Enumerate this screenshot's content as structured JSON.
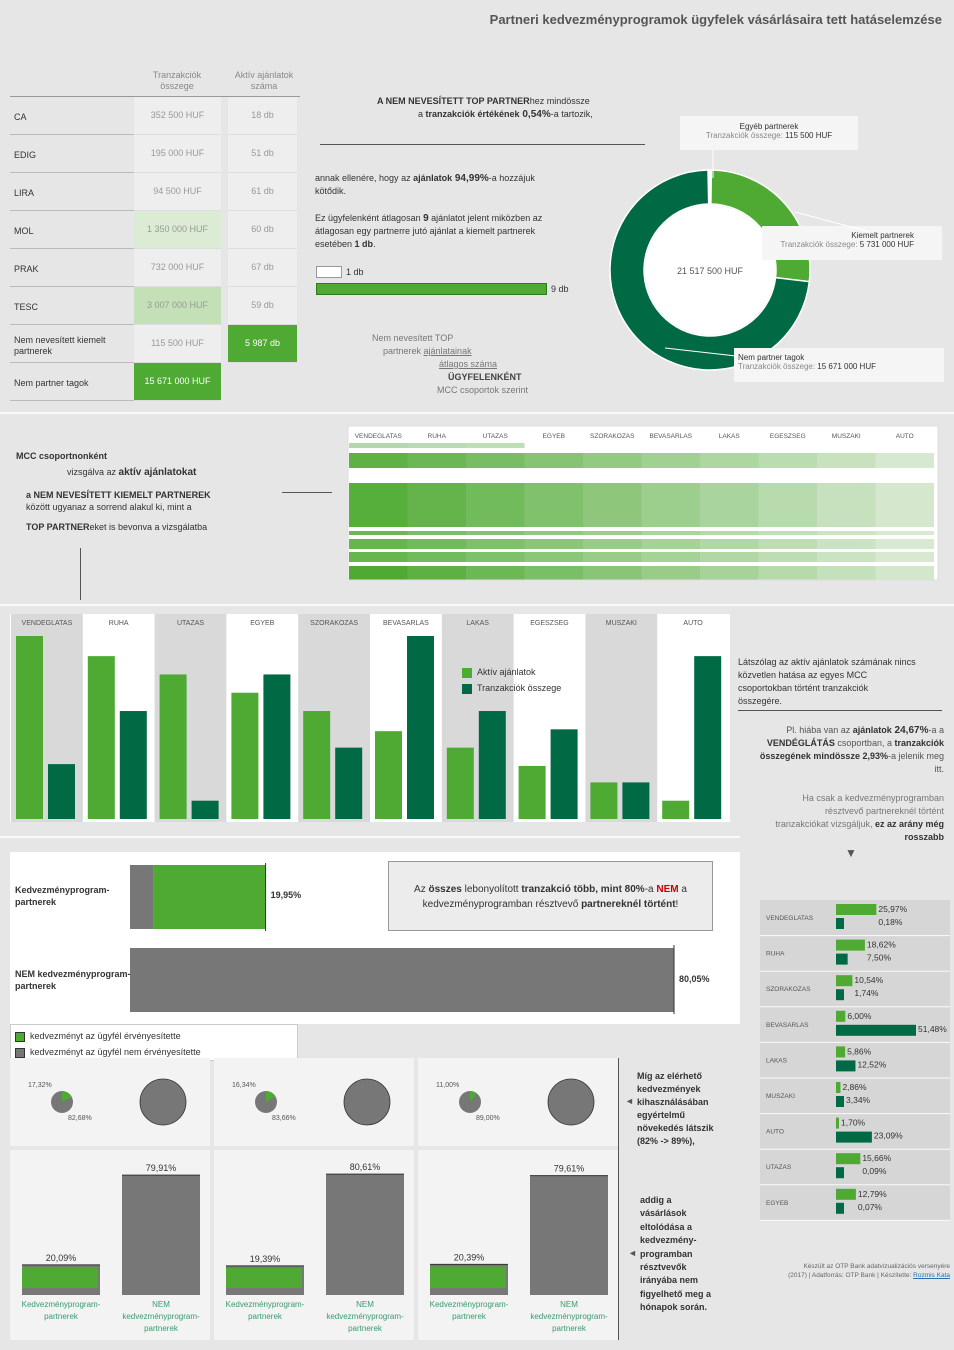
{
  "title": "Partneri kedvezményprogramok ügyfelek vásárlásaira tett hatáselemzése",
  "colors": {
    "light_green": "#4eaa32",
    "dark_green": "#006a45",
    "gray": "#777777",
    "highlight": "#cc0000"
  },
  "table": {
    "col1_header_1": "Tranzakciók",
    "col1_header_2": "összege",
    "col2_header_1": "Aktív ajánlatok",
    "col2_header_2": "száma",
    "rows": [
      {
        "label": "CA",
        "amount": "352 500 HUF",
        "count": "18 db"
      },
      {
        "label": "EDIG",
        "amount": "195 000 HUF",
        "count": "51 db"
      },
      {
        "label": "LIRA",
        "amount": "94 500 HUF",
        "count": "61 db"
      },
      {
        "label": "MOL",
        "amount": "1 350 000 HUF",
        "count": "60 db"
      },
      {
        "label": "PRAK",
        "amount": "732 000 HUF",
        "count": "67 db"
      },
      {
        "label": "TESC",
        "amount": "3 007 000 HUF",
        "count": "59 db"
      },
      {
        "label_1": "Nem nevesített kiemelt",
        "label_2": "partnerek",
        "amount": "115 500 HUF",
        "count": "5 987 db"
      },
      {
        "label": "Nem partner tagok",
        "amount": "15 671 000 HUF",
        "count": ""
      }
    ]
  },
  "intro": {
    "line1_a": "A NEM NEVESÍTETT TOP PARTNER",
    "line1_b": "hez mindössze",
    "line2_a": "a ",
    "line2_b": "tranzakciók értékének",
    "line2_c": " 0,54%",
    "line2_d": "-a tartozik,",
    "p2_a": "annak ellenére, hogy az ",
    "p2_b": "ajánlatok",
    "p2_c": " 94,99%",
    "p2_d": "-a hozzájuk",
    "p2_e": "kötődik.",
    "p3_a": "Ez ügyfelenként átlagosan ",
    "p3_b": "9",
    "p3_c": " ajánlatot jelent miközben az",
    "p3_d": "átlagosan egy partnerre jutó ajánlat a kiemelt partnerek",
    "p3_e": "esetében ",
    "p3_f": "1 db",
    "p3_g": ".",
    "bar1_label": "1 db",
    "bar2_label": "9 db",
    "cap1": "Nem nevesített TOP",
    "cap2_a": "partnerek ",
    "cap2_b": "ajánlatainak",
    "cap3": "átlagos száma",
    "cap4": "ÜGYFELENKÉNT",
    "cap5": "MCC csoportok szerint"
  },
  "donut": {
    "center_label": "21 517 500 HUF",
    "seg1_name": "Egyéb partnerek",
    "seg1_val": "115 500 HUF",
    "seg2_name": "Kiemelt partnerek",
    "seg2_val": "5 731 000 HUF",
    "seg3_name": "Nem partner tagok",
    "seg3_val": "15 671 000 HUF",
    "prefix": "Tranzakciók összege: "
  },
  "mcc_text": {
    "l1": "MCC csoportnonként",
    "l2_a": "vizsgálva az ",
    "l2_b": "aktív ajánlatokat",
    "l3": "a NEM NEVESÍTETT KIEMELT PARTNEREK",
    "l4": "között ugyanaz a sorrend alakul ki, mint a",
    "l5_a": "TOP PARTNER",
    "l5_b": "eket is bevonva a vizsgálatba"
  },
  "heatmap_cats": [
    "VENDEGLATAS",
    "RUHA",
    "UTAZAS",
    "EGYEB",
    "SZORAKOZAS",
    "BEVASARLAS",
    "LAKAS",
    "EGESZSEG",
    "MUSZAKI",
    "AUTO"
  ],
  "chart_data": [
    {
      "type": "bar",
      "title": "",
      "categories": [
        "VENDEGLATAS",
        "RUHA",
        "UTAZAS",
        "EGYEB",
        "SZORAKOZAS",
        "BEVASARLAS",
        "LAKAS",
        "EGESZSEG",
        "MUSZAKI",
        "AUTO"
      ],
      "series": [
        {
          "name": "Aktív ajánlatok",
          "values": [
            100,
            89,
            79,
            69,
            59,
            48,
            39,
            29,
            20,
            10
          ]
        },
        {
          "name": "Tranzakciók összege",
          "values": [
            30,
            59,
            10,
            79,
            39,
            100,
            59,
            49,
            20,
            89
          ]
        }
      ],
      "ylim": [
        0,
        100
      ]
    },
    {
      "type": "bar",
      "title": "",
      "categories": [
        "Kedvezményprogram-partnerek",
        "NEM kedvezményprogram-partnerek"
      ],
      "series": [
        {
          "name": "kedvezményt az ügyfél érvényesítette",
          "values": [
            16.47,
            0
          ]
        },
        {
          "name": "kedvezményt az ügyfél nem érvényesítette",
          "values": [
            3.48,
            80.05
          ]
        }
      ],
      "labels": [
        "19,95%",
        "80,05%"
      ]
    },
    {
      "type": "bar",
      "title": "",
      "categories": [
        "VENDEGLATAS",
        "RUHA",
        "SZORAKOZAS",
        "BEVASARLAS",
        "LAKAS",
        "MUSZAKI",
        "AUTO",
        "UTAZAS",
        "EGYEB"
      ],
      "series": [
        {
          "name": "Aktív ajánlatok",
          "values": [
            25.97,
            18.62,
            10.54,
            6.0,
            5.86,
            2.86,
            1.7,
            15.66,
            12.79
          ]
        },
        {
          "name": "Tranzakciók összege",
          "values": [
            0.18,
            7.5,
            1.74,
            51.48,
            12.52,
            3.34,
            23.09,
            0.09,
            0.07
          ]
        }
      ],
      "labels_a": [
        "25,97%",
        "18,62%",
        "10,54%",
        "6,00%",
        "5,86%",
        "2,86%",
        "1,70%",
        "15,66%",
        "12,79%"
      ],
      "labels_b": [
        "0,18%",
        "7,50%",
        "1,74%",
        "51,48%",
        "12,52%",
        "3,34%",
        "23,09%",
        "0,09%",
        "0,07%"
      ]
    },
    {
      "type": "pie",
      "title": "",
      "panels": [
        {
          "a": 17.32,
          "b": 82.68,
          "la": "17,32%",
          "lb": "82,68%"
        },
        {
          "a": 16.34,
          "b": 83.66,
          "la": "16,34%",
          "lb": "83,66%"
        },
        {
          "a": 11.0,
          "b": 89.0,
          "la": "11,00%",
          "lb": "89,00%"
        }
      ]
    },
    {
      "type": "bar",
      "title": "",
      "panels": [
        {
          "a": 20.09,
          "b": 79.91,
          "la": "20,09%",
          "lb": "79,91%"
        },
        {
          "a": 19.39,
          "b": 80.61,
          "la": "19,39%",
          "lb": "80,61%"
        },
        {
          "a": 20.39,
          "b": 79.61,
          "la": "20,39%",
          "lb": "79,61%"
        }
      ],
      "cat_a_1": "Kedvezményprogram-",
      "cat_a_2": "partnerek",
      "cat_b_1": "NEM",
      "cat_b_2": "kedvezményprogram-",
      "cat_b_3": "partnerek"
    }
  ],
  "legend": {
    "active": "Aktív ajánlatok",
    "trans": "Tranzakciók összege",
    "used": "kedvezményt az ügyfél érvényesítette",
    "unused": "kedvezményt az ügyfél nem érvényesítette"
  },
  "right_text": {
    "p1": "Látszólag az aktív ajánlatok számának nincs",
    "p1b": "közvetlen hatása az egyes MCC",
    "p1c": "csoportokban történt tranzakciók",
    "p1d": "összegére.",
    "p2a": "Pl. hiába van az ",
    "p2b": "ajánlatok",
    "p2c": " 24,67%",
    "p2d": "-a a",
    "p2e": "VENDÉGLÁTÁS",
    "p2f": " csoportban, a ",
    "p2g": "tranzakciók",
    "p2h": "összegének mindössze 2,93%",
    "p2i": "-a jelenik meg",
    "p2j": "itt.",
    "p3a": "Ha csak a kedvezményprogramban",
    "p3b": "résztvevő partnereknél történt",
    "p3c": "tranzakciókat vizsgáljuk, ",
    "p3d": "ez az arány még",
    "p3e": "rosszabb",
    "arrow": "▼"
  },
  "callout": {
    "a": "Az ",
    "b": "összes",
    "c": " lebonyolított ",
    "d": "tranzakció több, mint 80%",
    "e": "-a ",
    "f": "NEM",
    "g": " a",
    "h": "kedvezményprogramban résztvevő ",
    "i": "partnereknél történt",
    "j": "!"
  },
  "bar_labels": {
    "kp_1": "Kedvezményprogram-",
    "kp_2": "partnerek",
    "nkp_1": "NEM kedvezményprogram-",
    "nkp_2": "partnerek"
  },
  "side_notes": {
    "n1": [
      "Míg az elérhető",
      "kedvezmények",
      "kihasználásában",
      "egyértelmű",
      "növekedés látszik",
      "(82% -> 89%),"
    ],
    "n2": [
      "addig a",
      "vásárlások",
      "eltolódása a",
      "kedvezmény-",
      "programban",
      "résztvevők",
      "irányába nem",
      "figyelhető meg a",
      "hónapok során."
    ],
    "marker": "◄"
  },
  "footer": {
    "l1": "Készült az OTP Bank adatvizualizációs versenyére",
    "l2": "(2017) | Adatforrás: OTP Bank | Készítette: ",
    "author": "Rozmis Kata"
  }
}
